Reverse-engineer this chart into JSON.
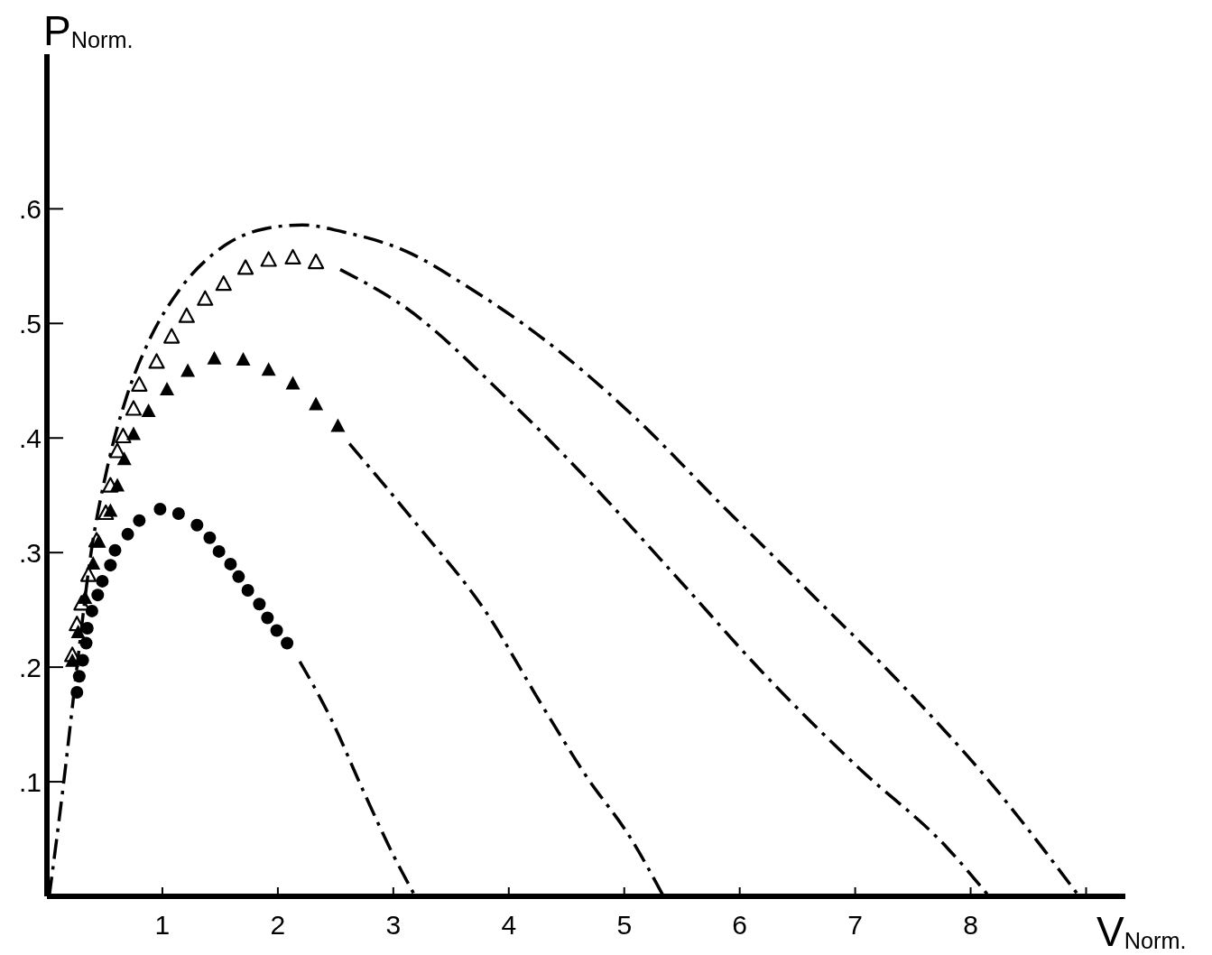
{
  "chart_data": {
    "type": "line",
    "xlabel": "V$_{Norm.}$",
    "ylabel": "P$_{Norm.}$",
    "xlim": [
      0,
      9.34
    ],
    "ylim": [
      0,
      0.735
    ],
    "xticks": [
      1,
      2,
      3,
      4,
      5,
      6,
      7,
      8,
      {
        "value": 9,
        "label": null
      }
    ],
    "yticks": [
      {
        "value": 0.1,
        "label": ".1"
      },
      {
        "value": 0.2,
        "label": ".2"
      },
      {
        "value": 0.3,
        "label": ".3"
      },
      {
        "value": 0.4,
        "label": ".4"
      },
      {
        "value": 0.5,
        "label": ".5"
      },
      {
        "value": 0.6,
        "label": ".6"
      }
    ],
    "grid": false,
    "series": [
      {
        "color": "#000000",
        "line_style": "dashed",
        "x": [
          0.02,
          0.14,
          0.26,
          0.375,
          0.52,
          0.69,
          0.88,
          1.16,
          1.47,
          1.86,
          2.21,
          2.56,
          3.11,
          3.66,
          4.28,
          5.06,
          5.84,
          6.63,
          7.41,
          8.19,
          8.94
        ],
        "values": [
          0,
          0.095,
          0.2,
          0.295,
          0.373,
          0.436,
          0.484,
          0.531,
          0.563,
          0.582,
          0.586,
          0.58,
          0.563,
          0.531,
          0.488,
          0.421,
          0.342,
          0.263,
          0.184,
          0.097,
          0
        ]
      },
      {
        "color": "#000000",
        "line_style": "dashed",
        "x": [
          2.54,
          3.09,
          3.97,
          4.67,
          5.45,
          6.23,
          7.02,
          7.8,
          8.16
        ],
        "values": [
          0.547,
          0.515,
          0.436,
          0.365,
          0.279,
          0.192,
          0.113,
          0.042,
          0
        ]
      },
      {
        "color": "#000000",
        "line_style": "dashed",
        "x": [
          2.62,
          3.2,
          3.81,
          4.28,
          4.67,
          5.06,
          5.34
        ],
        "values": [
          0.395,
          0.325,
          0.247,
          0.168,
          0.105,
          0.05,
          0
        ]
      },
      {
        "color": "#000000",
        "line_style": "dashed",
        "x": [
          2.19,
          2.46,
          2.74,
          3.01,
          3.19
        ],
        "values": [
          0.205,
          0.155,
          0.092,
          0.034,
          0
        ]
      },
      {
        "type": "scatter",
        "color": "#000000",
        "marker": "triangle-open",
        "x": [
          0.22,
          0.26,
          0.3,
          0.36,
          0.43,
          0.51,
          0.55,
          0.61,
          0.66,
          0.75,
          0.8,
          0.95,
          1.08,
          1.21,
          1.37,
          1.53,
          1.72,
          1.92,
          2.13,
          2.33
        ],
        "values": [
          0.21,
          0.237,
          0.255,
          0.28,
          0.31,
          0.334,
          0.358,
          0.388,
          0.401,
          0.425,
          0.446,
          0.466,
          0.488,
          0.506,
          0.521,
          0.534,
          0.548,
          0.555,
          0.557,
          0.553
        ]
      },
      {
        "type": "scatter",
        "color": "#000000",
        "marker": "triangle",
        "x": [
          0.22,
          0.27,
          0.33,
          0.4,
          0.45,
          0.55,
          0.61,
          0.67,
          0.75,
          0.88,
          1.04,
          1.22,
          1.45,
          1.7,
          1.92,
          2.13,
          2.33,
          2.52
        ],
        "values": [
          0.205,
          0.23,
          0.26,
          0.29,
          0.309,
          0.336,
          0.358,
          0.381,
          0.403,
          0.423,
          0.442,
          0.458,
          0.469,
          0.468,
          0.459,
          0.447,
          0.429,
          0.41
        ]
      },
      {
        "type": "scatter",
        "color": "#000000",
        "marker": "circle",
        "x": [
          0.26,
          0.28,
          0.31,
          0.34,
          0.35,
          0.39,
          0.44,
          0.48,
          0.55,
          0.59,
          0.7,
          0.8,
          0.98,
          1.14,
          1.3,
          1.41,
          1.49,
          1.59,
          1.66,
          1.74,
          1.84,
          1.91,
          1.99,
          2.08
        ],
        "values": [
          0.178,
          0.192,
          0.206,
          0.221,
          0.234,
          0.249,
          0.263,
          0.275,
          0.289,
          0.302,
          0.316,
          0.328,
          0.338,
          0.334,
          0.324,
          0.313,
          0.301,
          0.29,
          0.279,
          0.267,
          0.255,
          0.243,
          0.232,
          0.221
        ]
      }
    ]
  }
}
